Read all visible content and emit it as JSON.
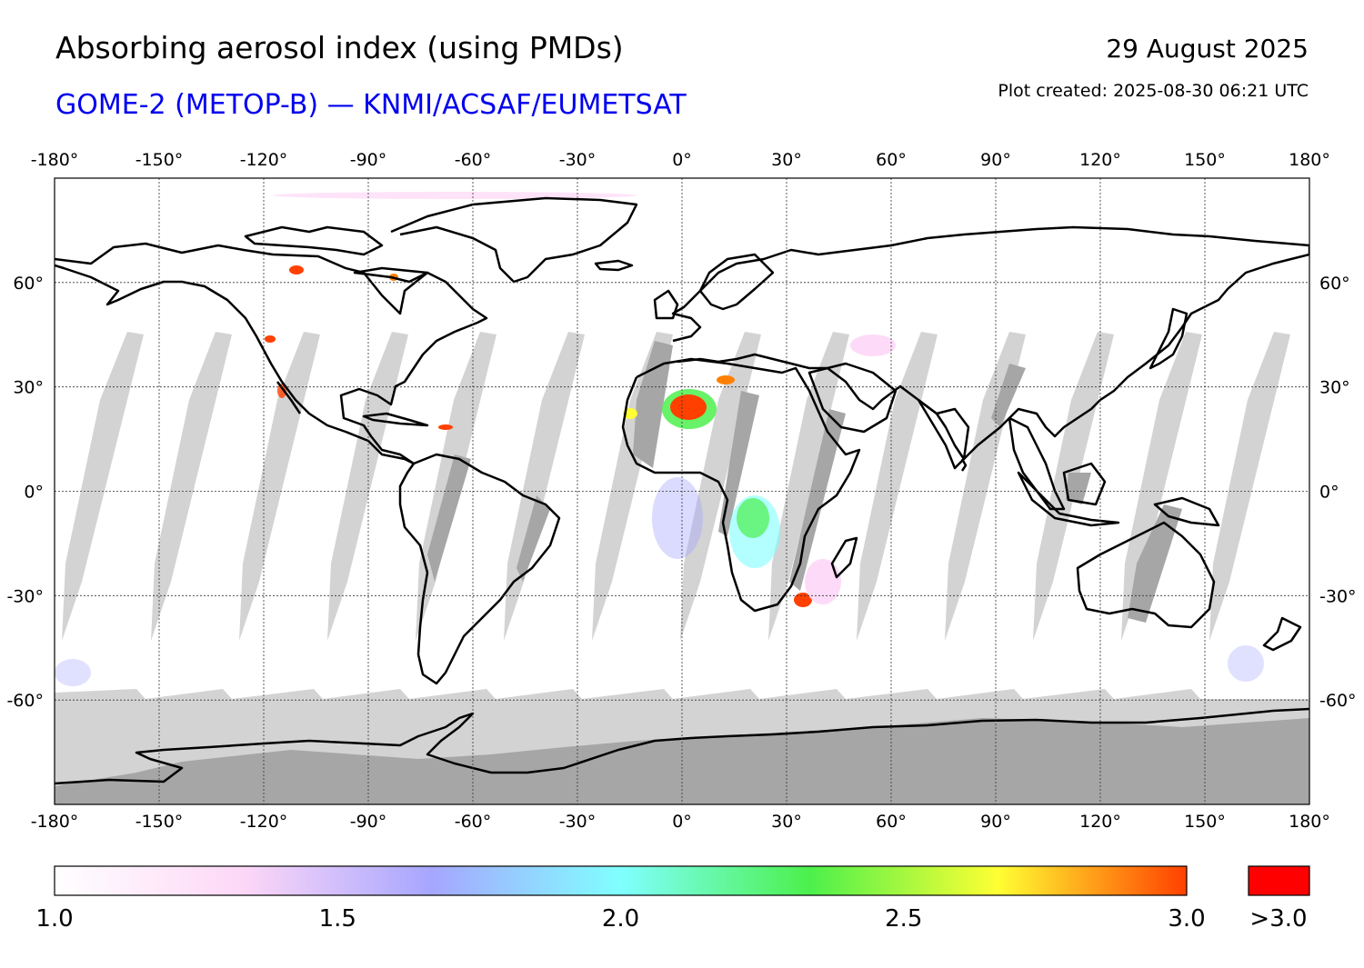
{
  "header": {
    "title": "Absorbing aerosol index (using PMDs)",
    "subtitle": "GOME-2 (METOP-B) — KNMI/ACSAF/EUMETSAT",
    "date": "29 August 2025",
    "created": "Plot created: 2025-08-30 06:21 UTC"
  },
  "map": {
    "projection": "plate-carree",
    "lon_range": [
      -180,
      180
    ],
    "lat_range": [
      -90,
      90
    ],
    "lon_ticks": [
      "-180°",
      "-150°",
      "-120°",
      "-90°",
      "-60°",
      "-30°",
      "0°",
      "30°",
      "60°",
      "90°",
      "120°",
      "150°",
      "180°"
    ],
    "lat_ticks": [
      "60°",
      "30°",
      "0°",
      "-30°",
      "-60°"
    ],
    "grid": "dotted",
    "colors": {
      "missing_data": "#d3d3d3",
      "land_missing": "#a6a6a6",
      "coastline": "#000000"
    }
  },
  "colorbar": {
    "ticks": [
      "1.0",
      "1.5",
      "2.0",
      "2.5",
      "3.0"
    ],
    "overflow_label": ">3.0",
    "overflow_color": "#ff0000",
    "range": [
      1.0,
      3.0
    ],
    "stops": [
      "#ffffff",
      "#fdd7f7",
      "#a6a6ff",
      "#80ffff",
      "#4cf04c",
      "#ffff33",
      "#ff4000"
    ]
  }
}
